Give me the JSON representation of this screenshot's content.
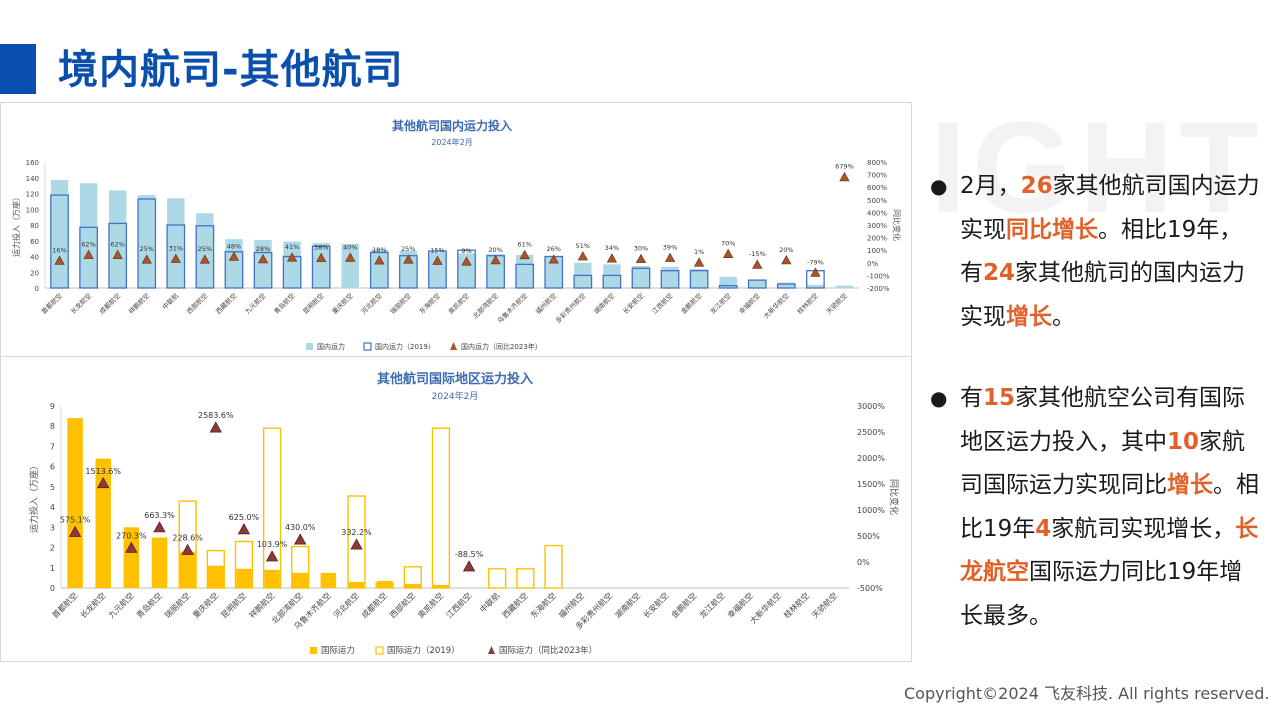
{
  "title": "境内航司-其他航司",
  "watermark": "IGHT",
  "copyright": "Copyright©2024 飞友科技. All rights reserved.",
  "colors": {
    "domestic": "#add8e6",
    "domestic2019": "#4472c4",
    "intl": "#ffc000",
    "marker_dom": "#a8562b",
    "marker_intl": "#8b3a3a"
  },
  "bullets": [
    [
      {
        "t": "2月，"
      },
      {
        "t": "26",
        "hl": true
      },
      {
        "t": "家其他航司国内运力实现"
      },
      {
        "t": "同比增长",
        "hl": true
      },
      {
        "t": "。相比19年，有"
      },
      {
        "t": "24",
        "hl": true
      },
      {
        "t": "家其他航司的国内运力实现"
      },
      {
        "t": "增长",
        "hl": true
      },
      {
        "t": "。"
      }
    ],
    [
      {
        "t": "有"
      },
      {
        "t": "15",
        "hl": true
      },
      {
        "t": "家其他航空公司有国际地区运力投入，其中"
      },
      {
        "t": "10",
        "hl": true
      },
      {
        "t": "家航司国际运力实现同比"
      },
      {
        "t": "增长",
        "hl": true
      },
      {
        "t": "。相比19年"
      },
      {
        "t": "4",
        "hl": true
      },
      {
        "t": "家航司实现增长，"
      },
      {
        "t": "长龙航空",
        "hl": true
      },
      {
        "t": "国际运力同比19年增长最多。"
      }
    ]
  ],
  "chart_data": [
    {
      "type": "bar",
      "title": "其他航司国内运力投入",
      "subtitle": "2024年2月",
      "ylabel": "运力投入（万座）",
      "y2label": "同比变化",
      "ylim": [
        0,
        160
      ],
      "y2lim": [
        -200,
        800
      ],
      "yticks": [
        0,
        20,
        40,
        60,
        80,
        100,
        120,
        140,
        160
      ],
      "y2ticks": [
        "-200%",
        "-100%",
        "0%",
        "100%",
        "200%",
        "300%",
        "400%",
        "500%",
        "600%",
        "700%",
        "800%"
      ],
      "categories": [
        "首都航空",
        "长龙航空",
        "成都航空",
        "祥鹏航空",
        "中联航",
        "西部航空",
        "西藏航空",
        "九元航空",
        "青岛航空",
        "昆明航空",
        "重庆航空",
        "河北航空",
        "瑞丽航空",
        "东海航空",
        "奥凯航空",
        "北部湾航空",
        "乌鲁木齐航空",
        "福州航空",
        "多彩贵州航空",
        "湖南航空",
        "长安航空",
        "江西航空",
        "金鹏航空",
        "龙江航空",
        "幸福航空",
        "大新华航空",
        "桂林航空",
        "天骄航空"
      ],
      "series": [
        {
          "name": "国内运力",
          "kind": "bar",
          "values": [
            137,
            133,
            124,
            118,
            114,
            95,
            62,
            61,
            59,
            57,
            56,
            49,
            47,
            45,
            44,
            43,
            42,
            40,
            32,
            30,
            28,
            27,
            24,
            14,
            10,
            7,
            4,
            3
          ]
        },
        {
          "name": "国内运力（2019）",
          "kind": "bar-outline",
          "values": [
            118,
            77,
            82,
            113,
            80,
            79,
            46,
            45,
            40,
            53,
            0,
            45,
            41,
            47,
            48,
            41,
            30,
            40,
            16,
            16,
            25,
            22,
            22,
            3,
            10,
            5,
            22,
            0
          ]
        },
        {
          "name": "国内运力（同比2023年）",
          "kind": "marker",
          "values": [
            16,
            62,
            62,
            25,
            31,
            25,
            48,
            28,
            41,
            38,
            40,
            18,
            25,
            15,
            9,
            20,
            61,
            26,
            51,
            34,
            30,
            39,
            1,
            70,
            -15,
            20,
            -79,
            679
          ]
        }
      ],
      "point_labels": [
        "16%",
        "62%",
        "62%",
        "25%",
        "31%",
        "25%",
        "48%",
        "28%",
        "41%",
        "38%",
        "40%",
        "18%",
        "25%",
        "15%",
        "9%",
        "20%",
        "61%",
        "26%",
        "51%",
        "34%",
        "30%",
        "39%",
        "1%",
        "70%",
        "-15%",
        "20%",
        "-79%",
        "679%"
      ]
    },
    {
      "type": "bar",
      "title": "其他航司国际地区运力投入",
      "subtitle": "2024年2月",
      "ylabel": "运力投入（万座）",
      "y2label": "同比变化",
      "ylim": [
        0,
        9
      ],
      "y2lim": [
        -500,
        3000
      ],
      "yticks": [
        0,
        1,
        2,
        3,
        4,
        5,
        6,
        7,
        8,
        9
      ],
      "y2ticks": [
        "-500%",
        "0%",
        "500%",
        "1000%",
        "1500%",
        "2000%",
        "2500%",
        "3000%"
      ],
      "categories": [
        "首都航空",
        "长龙航空",
        "九元航空",
        "青岛航空",
        "瑞丽航空",
        "重庆航空",
        "昆明航空",
        "祥鹏航空",
        "北部湾航空",
        "乌鲁木齐航空",
        "河北航空",
        "成都航空",
        "西部航空",
        "奥凯航空",
        "江西航空",
        "中联航",
        "西藏航空",
        "东海航空",
        "福州航空",
        "多彩贵州航空",
        "湖南航空",
        "长安航空",
        "金鹏航空",
        "龙江航空",
        "幸福航空",
        "大新华航空",
        "桂林航空",
        "天骄航空"
      ],
      "series": [
        {
          "name": "国际运力",
          "kind": "bar",
          "values": [
            8.4,
            6.4,
            3.0,
            2.5,
            1.8,
            1.1,
            0.95,
            0.9,
            0.75,
            0.75,
            0.3,
            0.35,
            0.2,
            0.15,
            0,
            0,
            0,
            0,
            0,
            0,
            0,
            0,
            0,
            0,
            0,
            0,
            0,
            0
          ]
        },
        {
          "name": "国际运力（2019）",
          "kind": "bar-outline",
          "values": [
            0,
            0,
            0,
            0,
            4.3,
            1.85,
            2.3,
            7.9,
            2.05,
            0,
            4.55,
            0.25,
            1.05,
            7.9,
            0,
            0.95,
            0.95,
            2.1,
            0,
            0,
            0,
            0,
            0,
            0,
            0,
            0,
            0,
            0
          ]
        },
        {
          "name": "国际运力（同比2023年）",
          "kind": "marker",
          "values": [
            575.1,
            1513.6,
            270.3,
            663.3,
            228.6,
            2583.6,
            625.0,
            103.9,
            430.0,
            null,
            332.2,
            null,
            null,
            null,
            -88.5,
            null,
            null,
            null,
            null,
            null,
            null,
            null,
            null,
            null,
            null,
            null,
            null,
            null
          ]
        }
      ],
      "point_labels": [
        "575.1%",
        "1513.6%",
        "270.3%",
        "663.3%",
        "228.6%",
        "2583.6%",
        "625.0%",
        "103.9%",
        "430.0%",
        "",
        "332.2%",
        "",
        "",
        "",
        "-88.5%",
        "",
        "",
        "",
        "",
        "",
        "",
        "",
        "",
        "",
        "",
        "",
        "",
        ""
      ]
    }
  ]
}
